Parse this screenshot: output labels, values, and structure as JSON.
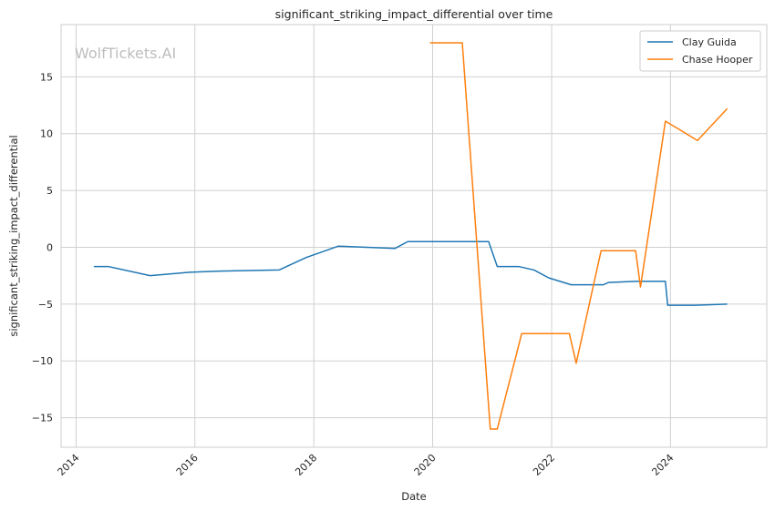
{
  "chart_data": {
    "type": "line",
    "title": "significant_striking_impact_differential over time",
    "xlabel": "Date",
    "ylabel": "significant_striking_impact_differential",
    "watermark": "WolfTickets.AI",
    "xlim": [
      "2013-10-01",
      "2025-08-15"
    ],
    "ylim": [
      -17.6,
      19.6
    ],
    "x_ticks": [
      "2014-01-01",
      "2016-01-01",
      "2018-01-01",
      "2020-01-01",
      "2022-01-01",
      "2024-01-01"
    ],
    "x_tick_labels": [
      "2014",
      "2016",
      "2018",
      "2020",
      "2022",
      "2024"
    ],
    "y_ticks": [
      -15,
      -10,
      -5,
      0,
      5,
      10,
      15
    ],
    "y_tick_labels": [
      "−15",
      "−10",
      "−5",
      "0",
      "5",
      "10",
      "15"
    ],
    "grid": true,
    "legend_position": "top-right",
    "series": [
      {
        "name": "Clay Guida",
        "color": "#1f77b4",
        "points": [
          [
            "2014-04-20",
            -1.7
          ],
          [
            "2014-07-20",
            -1.7
          ],
          [
            "2015-04-01",
            -2.5
          ],
          [
            "2015-12-01",
            -2.2
          ],
          [
            "2016-06-01",
            -2.1
          ],
          [
            "2017-06-01",
            -2.0
          ],
          [
            "2017-11-15",
            -0.9
          ],
          [
            "2018-06-01",
            0.1
          ],
          [
            "2019-05-15",
            -0.1
          ],
          [
            "2019-08-01",
            0.5
          ],
          [
            "2020-06-01",
            0.5
          ],
          [
            "2020-12-10",
            0.5
          ],
          [
            "2021-02-01",
            -1.7
          ],
          [
            "2021-06-15",
            -1.7
          ],
          [
            "2021-09-15",
            -2.0
          ],
          [
            "2021-12-15",
            -2.7
          ],
          [
            "2022-05-01",
            -3.3
          ],
          [
            "2022-11-15",
            -3.3
          ],
          [
            "2022-12-15",
            -3.1
          ],
          [
            "2023-06-01",
            -3.0
          ],
          [
            "2023-12-01",
            -3.0
          ],
          [
            "2023-12-15",
            -5.1
          ],
          [
            "2024-06-01",
            -5.1
          ],
          [
            "2024-12-15",
            -5.0
          ]
        ]
      },
      {
        "name": "Chase Hooper",
        "color": "#ff7f0e",
        "points": [
          [
            "2019-12-15",
            18.0
          ],
          [
            "2020-07-01",
            18.0
          ],
          [
            "2020-12-20",
            -16.0
          ],
          [
            "2021-02-01",
            -16.0
          ],
          [
            "2021-07-01",
            -7.6
          ],
          [
            "2022-04-20",
            -7.6
          ],
          [
            "2022-06-01",
            -10.2
          ],
          [
            "2022-11-01",
            -0.3
          ],
          [
            "2023-06-01",
            -0.3
          ],
          [
            "2023-07-01",
            -3.5
          ],
          [
            "2023-12-01",
            11.1
          ],
          [
            "2024-06-15",
            9.4
          ],
          [
            "2024-12-15",
            12.2
          ]
        ]
      }
    ]
  }
}
